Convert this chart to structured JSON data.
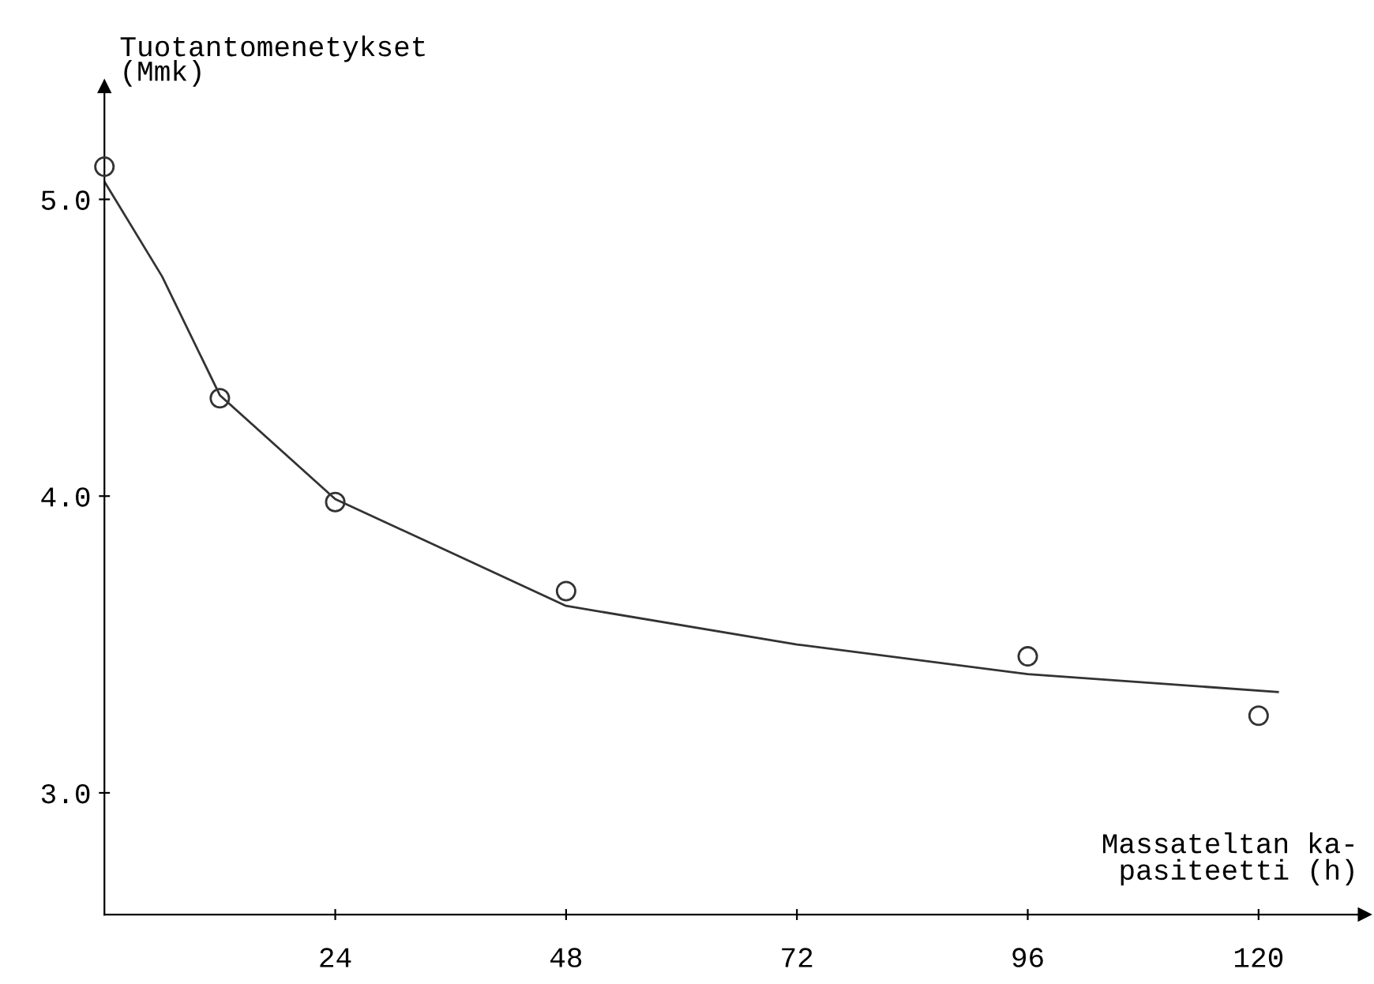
{
  "chart_data": {
    "type": "scatter",
    "ylabel": "Tuotantomenetykset\n(Mmk)",
    "xlabel": "Massateltan ka-\npasiteetti (h)",
    "xlim": [
      0,
      131
    ],
    "ylim": [
      2.59,
      5.38
    ],
    "xticks": [
      24,
      48,
      72,
      96,
      120
    ],
    "yticks": [
      {
        "value": 3,
        "label": "3.0"
      },
      {
        "value": 4,
        "label": "4.0"
      },
      {
        "value": 5,
        "label": "5.0"
      }
    ],
    "marker": "circle",
    "grid": false,
    "series": [
      {
        "color": "#333333",
        "x": [
          0,
          12,
          24,
          48,
          96,
          120
        ],
        "values": [
          5.11,
          4.33,
          3.98,
          3.68,
          3.46,
          3.26
        ]
      },
      {
        "type": "line",
        "color": "#333333",
        "line_style": "solid",
        "marker": "none",
        "x": [
          0,
          6,
          12,
          24,
          36,
          48,
          72,
          96,
          122
        ],
        "values": [
          5.06,
          4.74,
          4.34,
          3.99,
          3.81,
          3.63,
          3.5,
          3.4,
          3.34
        ]
      }
    ]
  }
}
